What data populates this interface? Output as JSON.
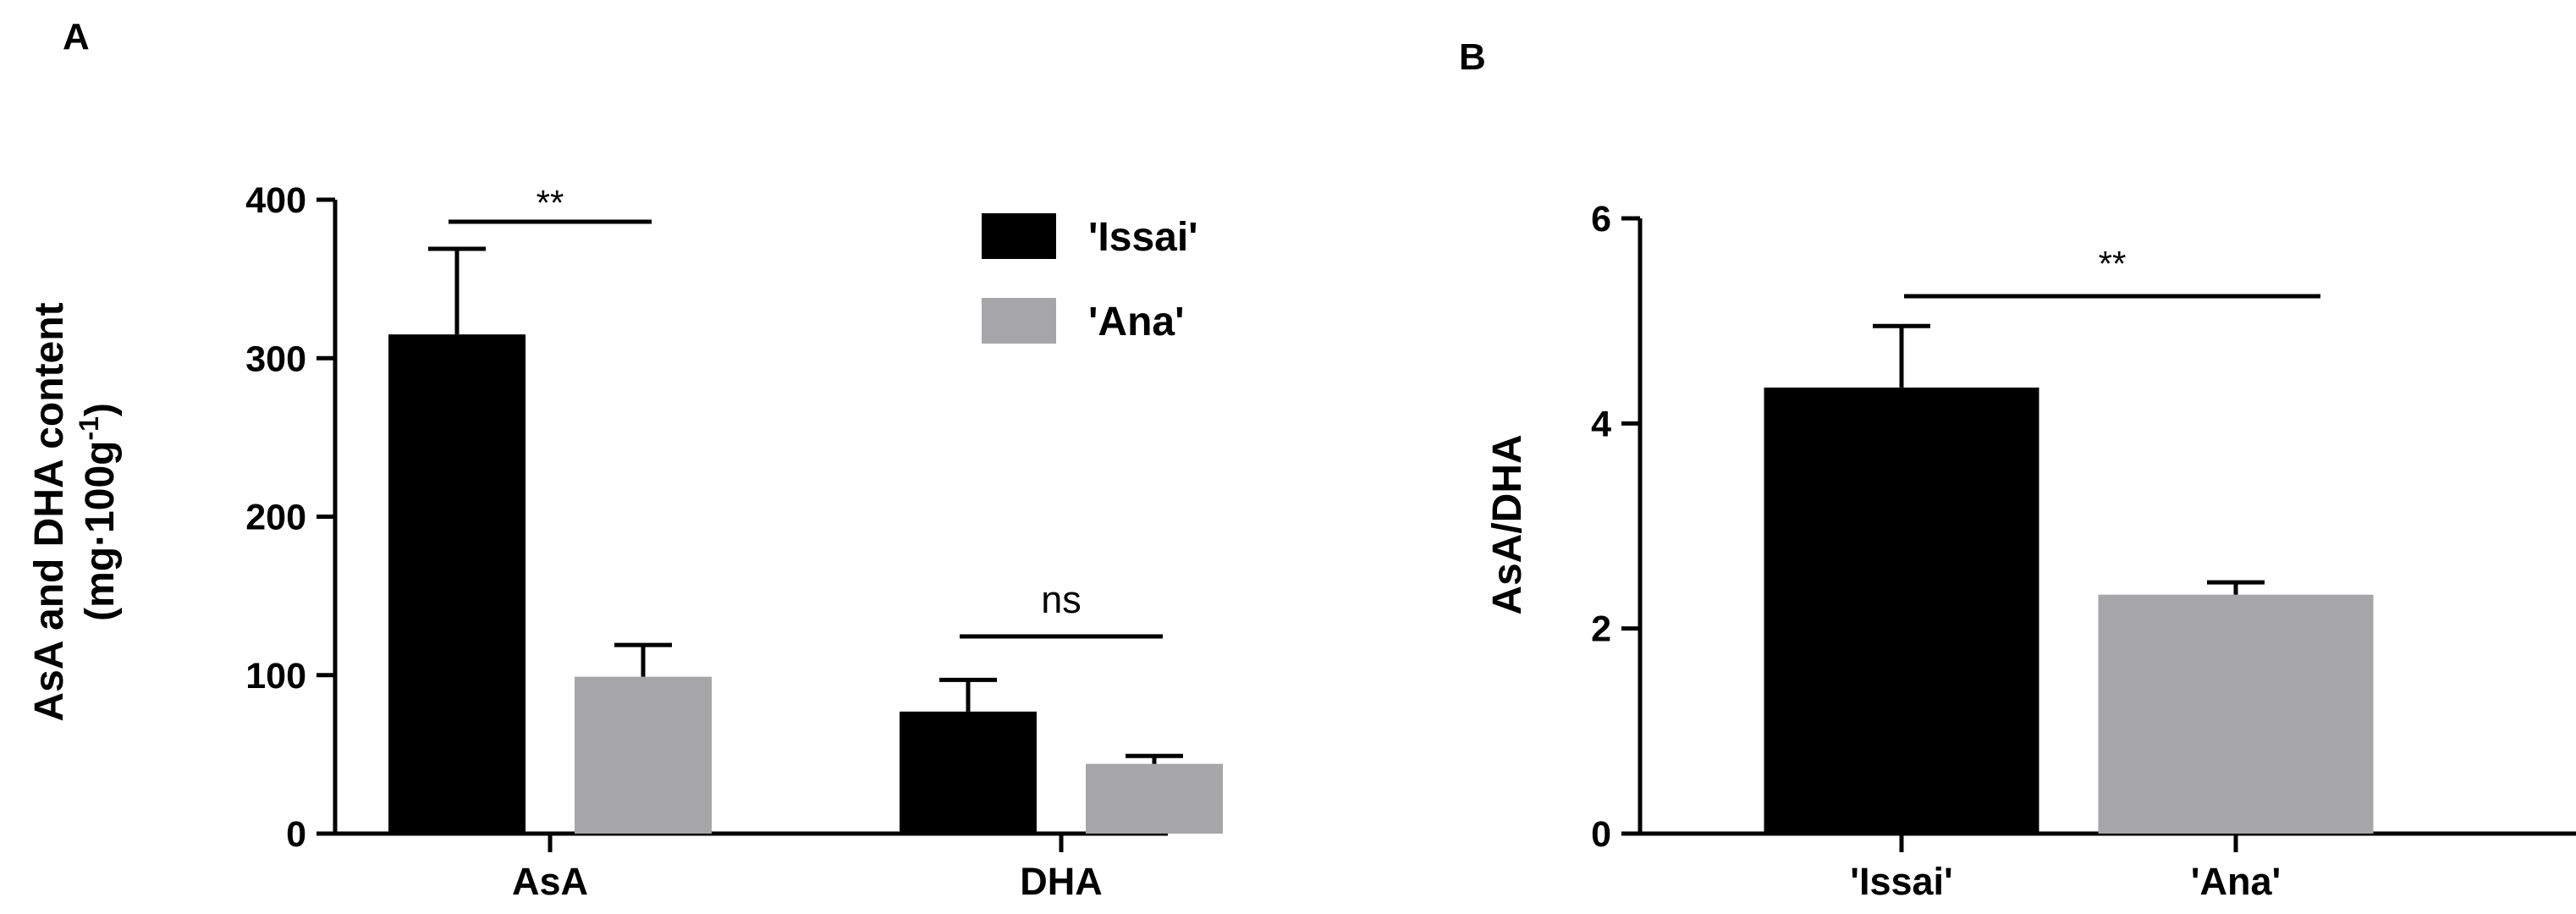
{
  "colors": {
    "issai": "#000000",
    "ana": "#a6a6a8",
    "axis": "#000000"
  },
  "panels": {
    "A": {
      "letter": "A",
      "ylabel_line1": "AsA and DHA content",
      "ylabel_line2_prefix": "(mg·100g",
      "ylabel_sup": "-1",
      "ylabel_line2_suffix": ")"
    },
    "B": {
      "letter": "B",
      "ylabel": "AsA/DHA"
    }
  },
  "legend": {
    "items": [
      "'Issai'",
      "'Ana'"
    ]
  },
  "chart_data": [
    {
      "type": "bar",
      "panel": "A",
      "categories": [
        "AsA",
        "DHA"
      ],
      "series": [
        {
          "name": "'Issai'",
          "values": [
            315,
            77
          ],
          "errors": [
            54,
            20
          ]
        },
        {
          "name": "'Ana'",
          "values": [
            99,
            44
          ],
          "errors": [
            20,
            5
          ]
        }
      ],
      "xlabel": "",
      "ylabel": "AsA and DHA content (mg·100g-1)",
      "ylim": [
        0,
        400
      ],
      "yticks": [
        "0",
        "100",
        "200",
        "300",
        "400"
      ],
      "legend": "top-right",
      "grid": false,
      "annotations": [
        {
          "category": "AsA",
          "text": "**"
        },
        {
          "category": "DHA",
          "text": "ns"
        }
      ]
    },
    {
      "type": "bar",
      "panel": "B",
      "categories": [
        "'Issai'",
        "'Ana'"
      ],
      "values": [
        4.35,
        2.33
      ],
      "errors": [
        0.6,
        0.12
      ],
      "xlabel": "",
      "ylabel": "AsA/DHA",
      "ylim": [
        0,
        6
      ],
      "yticks": [
        "0",
        "2",
        "4",
        "6"
      ],
      "grid": false,
      "annotations": [
        {
          "text": "**"
        }
      ]
    }
  ]
}
